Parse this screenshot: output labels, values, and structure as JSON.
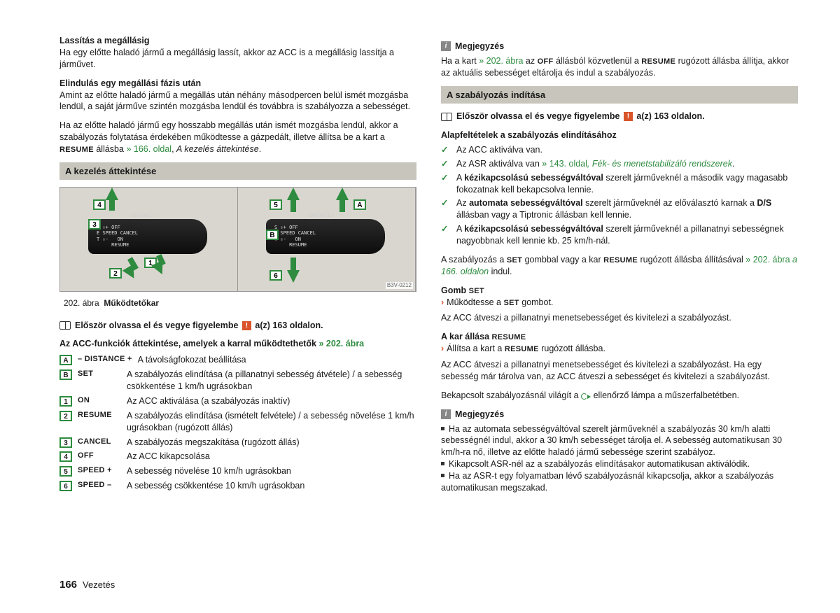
{
  "left": {
    "h1": "Lassítás a megállásig",
    "p1": "Ha egy előtte haladó jármű a megállásig lassít, akkor az ACC is a megállásig lassítja a járművet.",
    "h2": "Elindulás egy megállási fázis után",
    "p2": "Amint az előtte haladó jármű a megállás után néhány másodpercen belül ismét mozgásba lendül, a saját járműve szintén mozgásba lendül és továbbra is szabályozza a sebességet.",
    "p3a": "Ha az előtte haladó jármű egy hosszabb megállás után ismét mozgásba lendül, akkor a szabályozás folytatása érdekében működtesse a gázpedált, illetve állítsa be a kart a ",
    "p3_resume": "RESUME",
    "p3b": " állásba ",
    "p3_ref": "» 166. oldal",
    "p3c": ", ",
    "p3_ital": "A kezelés áttekintése",
    "section1": "A kezelés áttekintése",
    "fig_code": "B3V-0212",
    "stalk_text": "S ⇧+ OFF\nE SPEED CANCEL\nT ⇩-   ON\n     RESUME",
    "stalk_top": "— DISTANCE +",
    "caption_a": "202. ábra",
    "caption_b": "Működtetőkar",
    "note1a": "Először olvassa el és vegye figyelembe ",
    "note1b": " a(z) 163 oldalon.",
    "list_title_a": "Az ACC-funkciók áttekintése, amelyek a karral működtethetők ",
    "list_title_ref": "» 202. ábra",
    "rows": [
      {
        "k": "A",
        "lbl": "– DISTANCE +",
        "d": "A távolságfokozat beállítása"
      },
      {
        "k": "B",
        "lbl": "SET",
        "d": "A szabályozás elindítása (a pillanatnyi sebesség átvétele) / a sebesség csökkentése 1 km/h ugrásokban"
      },
      {
        "k": "1",
        "lbl": "ON",
        "d": "Az ACC aktiválása (a szabályozás inaktív)"
      },
      {
        "k": "2",
        "lbl": "RESUME",
        "d": "A szabályozás elindítása (ismételt felvétele) / a sebesség növelése 1 km/h ugrásokban (rugózott állás)"
      },
      {
        "k": "3",
        "lbl": "CANCEL",
        "d": "A szabályozás megszakítása (rugózott állás)"
      },
      {
        "k": "4",
        "lbl": "OFF",
        "d": "Az ACC kikapcsolása"
      },
      {
        "k": "5",
        "lbl": "SPEED +",
        "d": "A sebesség növelése 10 km/h ugrásokban"
      },
      {
        "k": "6",
        "lbl": "SPEED –",
        "d": "A sebesség csökkentése 10 km/h ugrásokban"
      }
    ]
  },
  "right": {
    "note_h1": "Megjegyzés",
    "n1a": "Ha a kart ",
    "n1_ref": "» 202. ábra",
    "n1b": " az ",
    "n1_off": "OFF",
    "n1c": " állásból közvetlenül a ",
    "n1_resume": "RESUME",
    "n1d": " rugózott állásba állítja, akkor az aktuális sebességet eltárolja és indul a szabályozás.",
    "section2": "A szabályozás indítása",
    "note2a": "Először olvassa el és vegye figyelembe ",
    "note2b": " a(z) 163 oldalon.",
    "pre_h": "Alapfeltételek a szabályozás elindításához",
    "checks": [
      {
        "t": "Az ACC aktiválva van."
      },
      {
        "pre": "Az ASR aktiválva van ",
        "ref": "» 143. oldal",
        "ital": ", Fék- és menetstabilizáló rendszerek",
        "post": "."
      },
      {
        "pre": "A ",
        "b": "kézikapcsolású sebességváltóval",
        "post": " szerelt járműveknél a második vagy magasabb fokozatnak kell bekapcsolva lennie."
      },
      {
        "pre": "Az ",
        "b": "automata sebességváltóval",
        "post": " szerelt járműveknél az előválasztó karnak a ",
        "b2": "D/S",
        "post2": " állásban vagy a Tiptronic állásban kell lennie."
      },
      {
        "pre": "A ",
        "b": "kézikapcsolású sebességváltóval",
        "post": " szerelt járműveknél a pillanatnyi sebességnek nagyobbnak kell lennie kb. 25 km/h-nál."
      }
    ],
    "p4a": "A szabályozás a ",
    "p4_set": "SET",
    "p4b": " gombbal vagy a kar ",
    "p4_resume": "RESUME",
    "p4c": " rugózott állásba állításával ",
    "p4_ref": "» 202. ábra",
    "p4_ital": " a 166. oldalon",
    "p4d": " indul.",
    "h_set": "Gomb ",
    "h_set_b": "SET",
    "set_action": "Működtesse a ",
    "set_action_b": "SET",
    "set_action_c": " gombot.",
    "p5": "Az ACC átveszi a pillanatnyi menetsebességet és kivitelezi a szabályozást.",
    "h_res": "A kar állása ",
    "h_res_b": "RESUME",
    "res_action": "Állítsa a kart a ",
    "res_action_b": "RESUME",
    "res_action_c": " rugózott állásba.",
    "p6": "Az ACC átveszi a pillanatnyi menetsebességet és kivitelezi a szabályozást. Ha egy sebesség már tárolva van, az ACC átveszi a sebességet és kivitelezi a szabályozást.",
    "p7a": "Bekapcsolt szabályozásnál világít a ",
    "p7b": " ellenőrző lámpa a műszerfalbetétben.",
    "note_h2": "Megjegyzés",
    "bul1": "Ha az automata sebességváltóval szerelt járműveknél a szabályozás 30 km/h alatti sebességnél indul, akkor a 30 km/h sebességet tárolja el. A sebesség automatikusan 30 km/h-ra nő, illetve az előtte haladó jármű sebessége szerint szabályoz.",
    "bul2": "Kikapcsolt ASR-nél az a szabályozás elindításakor automatikusan aktiválódik.",
    "bul3": "Ha az ASR-t egy folyamatban lévő szabályozásnál kikapcsolja, akkor a szabályozás automatikusan megszakad."
  },
  "footer": {
    "page": "166",
    "section": "Vezetés"
  }
}
